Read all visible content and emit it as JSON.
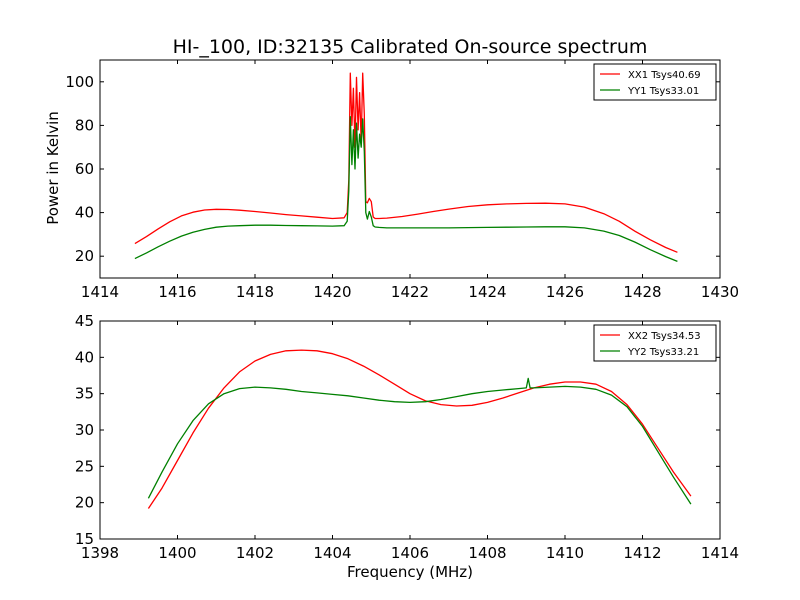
{
  "figure": {
    "title": "HI-_100, ID:32135 Calibrated On-source spectrum",
    "xlabel": "Frequency (MHz)",
    "ylabel": "Power in Kelvin"
  },
  "colors": {
    "red": "#ff0000",
    "green": "#008000",
    "axes": "#000000",
    "background": "#ffffff"
  },
  "chart_data": [
    {
      "type": "line",
      "panel": "top",
      "xlim": [
        1414,
        1430
      ],
      "ylim": [
        10,
        110
      ],
      "xticks": [
        1414,
        1416,
        1418,
        1420,
        1422,
        1424,
        1426,
        1428,
        1430
      ],
      "yticks": [
        20,
        40,
        60,
        80,
        100
      ],
      "grid": false,
      "legend_position": "top-right",
      "series": [
        {
          "name": "XX1 Tsys40.69",
          "color": "#ff0000",
          "x": [
            1414.9,
            1415.2,
            1415.5,
            1415.8,
            1416.1,
            1416.4,
            1416.7,
            1417.0,
            1417.3,
            1417.6,
            1418.0,
            1418.4,
            1418.8,
            1419.2,
            1419.6,
            1420.0,
            1420.3,
            1420.38,
            1420.42,
            1420.46,
            1420.5,
            1420.54,
            1420.58,
            1420.62,
            1420.66,
            1420.7,
            1420.74,
            1420.78,
            1420.82,
            1420.86,
            1420.9,
            1420.95,
            1421.0,
            1421.05,
            1421.1,
            1421.2,
            1421.4,
            1421.8,
            1422.2,
            1422.6,
            1423.0,
            1423.5,
            1424.0,
            1424.5,
            1425.0,
            1425.5,
            1426.0,
            1426.5,
            1427.0,
            1427.4,
            1427.8,
            1428.2,
            1428.6,
            1428.9
          ],
          "y": [
            25.8,
            29.0,
            32.5,
            35.8,
            38.5,
            40.2,
            41.2,
            41.5,
            41.4,
            41.1,
            40.5,
            39.8,
            39.1,
            38.5,
            37.9,
            37.3,
            37.6,
            40.0,
            55.0,
            104.0,
            80.0,
            97.0,
            70.0,
            102.0,
            78.0,
            95.0,
            72.0,
            104.0,
            85.0,
            45.0,
            44.5,
            46.5,
            45.0,
            38.0,
            37.3,
            37.3,
            37.5,
            38.2,
            39.3,
            40.5,
            41.6,
            42.8,
            43.6,
            44.0,
            44.2,
            44.3,
            44.0,
            42.5,
            39.5,
            36.0,
            31.5,
            27.5,
            24.0,
            21.8
          ]
        },
        {
          "name": "YY1 Tsys33.01",
          "color": "#008000",
          "x": [
            1414.9,
            1415.2,
            1415.5,
            1415.8,
            1416.1,
            1416.4,
            1416.7,
            1417.0,
            1417.3,
            1417.6,
            1418.0,
            1418.4,
            1418.8,
            1419.2,
            1419.6,
            1420.0,
            1420.3,
            1420.38,
            1420.42,
            1420.46,
            1420.5,
            1420.54,
            1420.58,
            1420.62,
            1420.66,
            1420.7,
            1420.74,
            1420.78,
            1420.82,
            1420.86,
            1420.9,
            1420.95,
            1421.0,
            1421.05,
            1421.1,
            1421.2,
            1421.4,
            1421.8,
            1422.2,
            1422.6,
            1423.0,
            1423.5,
            1424.0,
            1424.5,
            1425.0,
            1425.5,
            1426.0,
            1426.5,
            1427.0,
            1427.4,
            1427.8,
            1428.2,
            1428.6,
            1428.9
          ],
          "y": [
            18.9,
            21.5,
            24.3,
            26.9,
            29.2,
            31.0,
            32.3,
            33.3,
            33.8,
            34.0,
            34.2,
            34.2,
            34.1,
            34.0,
            33.9,
            33.8,
            34.0,
            36.0,
            50.0,
            84.0,
            62.0,
            78.0,
            60.0,
            81.0,
            65.0,
            76.0,
            70.0,
            83.0,
            68.0,
            40.0,
            37.0,
            40.5,
            38.0,
            34.0,
            33.4,
            33.2,
            33.0,
            33.0,
            33.0,
            33.0,
            33.0,
            33.1,
            33.2,
            33.3,
            33.4,
            33.5,
            33.5,
            33.0,
            31.5,
            29.5,
            26.5,
            23.0,
            19.8,
            17.6
          ]
        }
      ]
    },
    {
      "type": "line",
      "panel": "bottom",
      "xlim": [
        1398,
        1414
      ],
      "ylim": [
        15,
        45
      ],
      "xticks": [
        1398,
        1400,
        1402,
        1404,
        1406,
        1408,
        1410,
        1412,
        1414
      ],
      "yticks": [
        15,
        20,
        25,
        30,
        35,
        40,
        45
      ],
      "grid": false,
      "legend_position": "top-right",
      "series": [
        {
          "name": "XX2 Tsys34.53",
          "color": "#ff0000",
          "x": [
            1399.25,
            1399.6,
            1400.0,
            1400.4,
            1400.8,
            1401.2,
            1401.6,
            1402.0,
            1402.4,
            1402.8,
            1403.2,
            1403.6,
            1404.0,
            1404.4,
            1404.8,
            1405.2,
            1405.6,
            1406.0,
            1406.4,
            1406.8,
            1407.2,
            1407.6,
            1408.0,
            1408.4,
            1408.8,
            1409.2,
            1409.6,
            1410.0,
            1410.4,
            1410.8,
            1411.2,
            1411.6,
            1412.0,
            1412.4,
            1412.8,
            1413.25
          ],
          "y": [
            19.2,
            22.0,
            25.8,
            29.6,
            33.0,
            35.8,
            38.0,
            39.5,
            40.4,
            40.9,
            41.0,
            40.9,
            40.5,
            39.8,
            38.8,
            37.6,
            36.3,
            35.0,
            34.0,
            33.5,
            33.3,
            33.4,
            33.8,
            34.4,
            35.1,
            35.8,
            36.3,
            36.6,
            36.6,
            36.3,
            35.3,
            33.5,
            30.8,
            27.5,
            24.2,
            20.9
          ]
        },
        {
          "name": "YY2 Tsys33.21",
          "color": "#008000",
          "x": [
            1399.25,
            1399.6,
            1400.0,
            1400.4,
            1400.8,
            1401.2,
            1401.6,
            1402.0,
            1402.4,
            1402.8,
            1403.2,
            1403.6,
            1404.0,
            1404.4,
            1404.8,
            1405.2,
            1405.6,
            1406.0,
            1406.4,
            1406.8,
            1407.2,
            1407.6,
            1408.0,
            1408.4,
            1408.8,
            1409.0,
            1409.05,
            1409.1,
            1409.2,
            1409.6,
            1410.0,
            1410.4,
            1410.8,
            1411.2,
            1411.6,
            1412.0,
            1412.4,
            1412.8,
            1413.25
          ],
          "y": [
            20.6,
            24.2,
            28.1,
            31.3,
            33.6,
            35.0,
            35.7,
            35.9,
            35.8,
            35.6,
            35.3,
            35.1,
            34.9,
            34.7,
            34.4,
            34.1,
            33.9,
            33.8,
            33.9,
            34.2,
            34.6,
            35.0,
            35.3,
            35.5,
            35.7,
            35.8,
            37.1,
            35.8,
            35.8,
            35.9,
            36.0,
            35.9,
            35.6,
            34.8,
            33.2,
            30.5,
            27.0,
            23.5,
            19.8
          ]
        }
      ]
    }
  ]
}
